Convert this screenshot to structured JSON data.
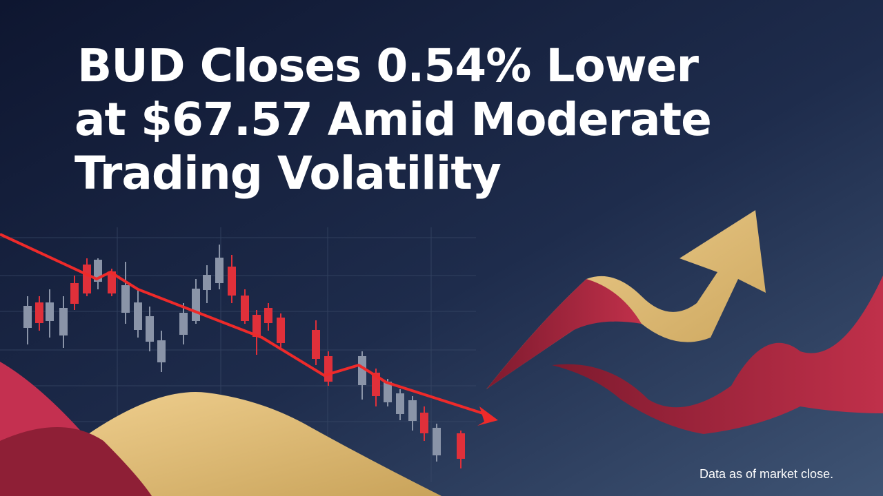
{
  "headline": {
    "lines": [
      "BUD Closes 0.54% Lower",
      "at $67.57 Amid Moderate",
      "Trading Volatility"
    ]
  },
  "footnote": "Data as of market close."
}
